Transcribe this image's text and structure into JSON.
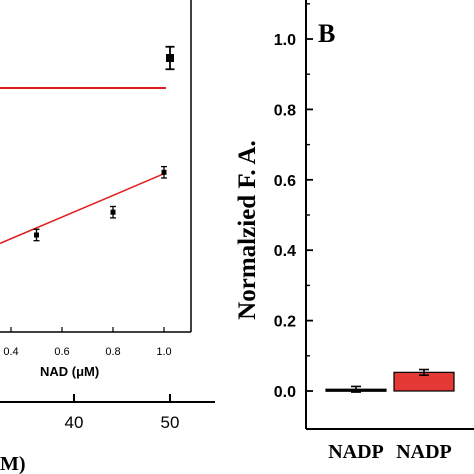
{
  "chart_data": [
    {
      "panel": "A",
      "type": "line",
      "series": [
        {
          "marker": "square",
          "color": "#000000",
          "x": [
            50
          ],
          "y": [
            0.94
          ],
          "yerr": [
            0.03
          ],
          "fit_line": {
            "color": "#e02020",
            "x": [
              0,
              50
            ],
            "y": [
              0.86,
              0.86
            ]
          }
        }
      ],
      "xlabel_tail": "M)",
      "x_ticks": [
        {
          "label": "40",
          "value": 40
        },
        {
          "label": "50",
          "value": 50
        }
      ],
      "inset": {
        "type": "scatter",
        "xlabel": "NAD (μM)",
        "x_ticks": [
          "0.4",
          "0.6",
          "0.8",
          "1.0"
        ],
        "xlim": [
          0.28,
          1.05
        ],
        "x": [
          0.5,
          0.8,
          1.0
        ],
        "y": [
          0.33,
          0.41,
          0.55
        ],
        "yerr": [
          0.02,
          0.02,
          0.02
        ],
        "fit_line": {
          "color": "#e02020",
          "slope": 0.38,
          "intercept": 0.165
        }
      }
    },
    {
      "panel": "B",
      "type": "bar",
      "panel_label": "B",
      "ylabel": "Normalzied F. A.",
      "ylim": [
        0,
        1.1
      ],
      "y_ticks": [
        "0.0",
        "0.2",
        "0.4",
        "0.6",
        "0.8",
        "1.0"
      ],
      "categories": [
        "NADP",
        "NADP"
      ],
      "values": [
        0.005,
        0.053
      ],
      "errors": [
        0.008,
        0.008
      ],
      "colors": [
        "#000000",
        "#e53935"
      ]
    }
  ]
}
